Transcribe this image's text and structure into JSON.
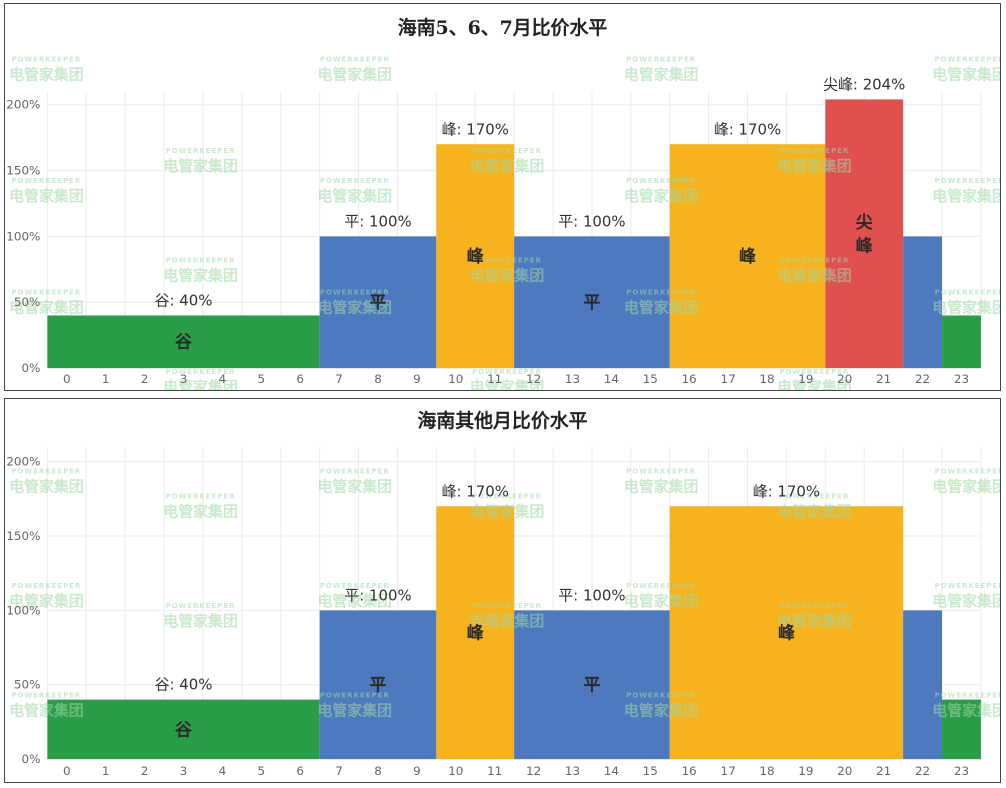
{
  "watermark": {
    "en": "POWERKEEPER",
    "cn": "电管家集团"
  },
  "chart_data": [
    {
      "type": "bar",
      "title": "海南5、6、7月比价水平",
      "ylim": [
        0,
        2.1
      ],
      "y_ticks": [
        "0%",
        "50%",
        "100%",
        "150%",
        "200%"
      ],
      "y_tick_values": [
        0,
        0.5,
        1.0,
        1.5,
        2.0
      ],
      "x_categories": [
        "0",
        "1",
        "2",
        "3",
        "4",
        "5",
        "6",
        "7",
        "8",
        "9",
        "10",
        "11",
        "12",
        "13",
        "14",
        "15",
        "16",
        "17",
        "18",
        "19",
        "20",
        "21",
        "22",
        "23"
      ],
      "hour_values": [
        0.4,
        0.4,
        0.4,
        0.4,
        0.4,
        0.4,
        0.4,
        1.0,
        1.0,
        1.0,
        1.7,
        1.7,
        1.0,
        1.0,
        1.0,
        1.0,
        1.7,
        1.7,
        1.7,
        1.7,
        2.04,
        2.04,
        1.0,
        0.4
      ],
      "segments": [
        {
          "start": 0,
          "end": 6,
          "value": 0.4,
          "tier": "谷",
          "label": "谷: 40%",
          "inner": "谷",
          "color": "#2a9d48"
        },
        {
          "start": 7,
          "end": 9,
          "value": 1.0,
          "tier": "平",
          "label": "平: 100%",
          "inner": "平",
          "color": "#4e79bf"
        },
        {
          "start": 10,
          "end": 11,
          "value": 1.7,
          "tier": "峰",
          "label": "峰: 170%",
          "inner": "峰",
          "color": "#f6b31e"
        },
        {
          "start": 12,
          "end": 15,
          "value": 1.0,
          "tier": "平",
          "label": "平: 100%",
          "inner": "平",
          "color": "#4e79bf"
        },
        {
          "start": 16,
          "end": 19,
          "value": 1.7,
          "tier": "峰",
          "label": "峰: 170%",
          "inner": "峰",
          "color": "#f6b31e"
        },
        {
          "start": 20,
          "end": 21,
          "value": 2.04,
          "tier": "尖峰",
          "label": "尖峰: 204%",
          "inner": "尖\n峰",
          "color": "#e0504f"
        },
        {
          "start": 22,
          "end": 22,
          "value": 1.0,
          "tier": "平",
          "label": "",
          "inner": "",
          "color": "#4e79bf"
        },
        {
          "start": 23,
          "end": 23,
          "value": 0.4,
          "tier": "谷",
          "label": "",
          "inner": "",
          "color": "#2a9d48"
        }
      ]
    },
    {
      "type": "bar",
      "title": "海南其他月比价水平",
      "ylim": [
        0,
        2.1
      ],
      "y_ticks": [
        "0%",
        "50%",
        "100%",
        "150%",
        "200%"
      ],
      "y_tick_values": [
        0,
        0.5,
        1.0,
        1.5,
        2.0
      ],
      "x_categories": [
        "0",
        "1",
        "2",
        "3",
        "4",
        "5",
        "6",
        "7",
        "8",
        "9",
        "10",
        "11",
        "12",
        "13",
        "14",
        "15",
        "16",
        "17",
        "18",
        "19",
        "20",
        "21",
        "22",
        "23"
      ],
      "hour_values": [
        0.4,
        0.4,
        0.4,
        0.4,
        0.4,
        0.4,
        0.4,
        1.0,
        1.0,
        1.0,
        1.7,
        1.7,
        1.0,
        1.0,
        1.0,
        1.0,
        1.7,
        1.7,
        1.7,
        1.7,
        1.7,
        1.7,
        1.0,
        0.4
      ],
      "segments": [
        {
          "start": 0,
          "end": 6,
          "value": 0.4,
          "tier": "谷",
          "label": "谷: 40%",
          "inner": "谷",
          "color": "#2a9d48"
        },
        {
          "start": 7,
          "end": 9,
          "value": 1.0,
          "tier": "平",
          "label": "平: 100%",
          "inner": "平",
          "color": "#4e79bf"
        },
        {
          "start": 10,
          "end": 11,
          "value": 1.7,
          "tier": "峰",
          "label": "峰: 170%",
          "inner": "峰",
          "color": "#f6b31e"
        },
        {
          "start": 12,
          "end": 15,
          "value": 1.0,
          "tier": "平",
          "label": "平: 100%",
          "inner": "平",
          "color": "#4e79bf"
        },
        {
          "start": 16,
          "end": 21,
          "value": 1.7,
          "tier": "峰",
          "label": "峰: 170%",
          "inner": "峰",
          "color": "#f6b31e"
        },
        {
          "start": 22,
          "end": 22,
          "value": 1.0,
          "tier": "平",
          "label": "",
          "inner": "",
          "color": "#4e79bf"
        },
        {
          "start": 23,
          "end": 23,
          "value": 0.4,
          "tier": "谷",
          "label": "",
          "inner": "",
          "color": "#2a9d48"
        }
      ]
    }
  ]
}
